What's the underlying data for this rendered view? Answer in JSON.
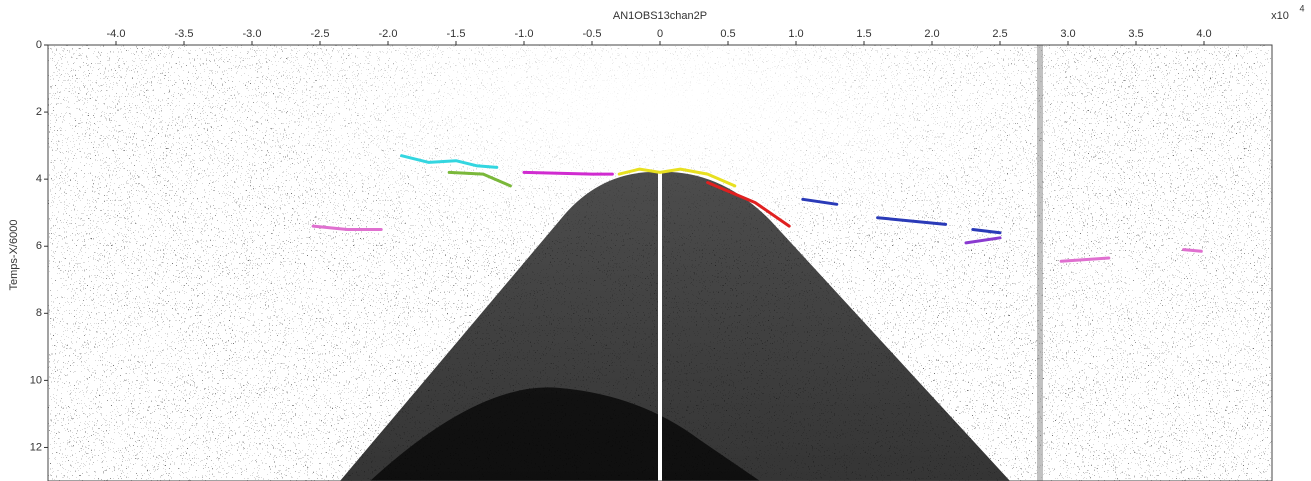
{
  "chart_data": {
    "type": "seismic",
    "title": "AN1OBS13chan2P",
    "y_label": "Temps-X/6000",
    "x_multiplier": "x10",
    "x_exponent": "4",
    "xlim": [
      -4.5,
      4.5
    ],
    "ylim": [
      0,
      13
    ],
    "y_inverted": true,
    "xticks": [
      {
        "value": -4,
        "label": "-4.0"
      },
      {
        "value": -3.5,
        "label": "-3.5"
      },
      {
        "value": -3,
        "label": "-3.0"
      },
      {
        "value": -2.5,
        "label": "-2.5"
      },
      {
        "value": -2,
        "label": "-2.0"
      },
      {
        "value": -1.5,
        "label": "-1.5"
      },
      {
        "value": -1,
        "label": "-1.0"
      },
      {
        "value": -0.5,
        "label": "-0.5"
      },
      0,
      {
        "value": 0.5,
        "label": "0.5"
      },
      {
        "value": 1,
        "label": "1.0"
      },
      {
        "value": 1.5,
        "label": "1.5"
      },
      {
        "value": 2,
        "label": "2.0"
      },
      {
        "value": 2.5,
        "label": "2.5"
      },
      {
        "value": 3,
        "label": "3.0"
      },
      {
        "value": 3.5,
        "label": "3.5"
      },
      {
        "value": 4,
        "label": "4.0"
      }
    ],
    "yticks": [
      0,
      2,
      4,
      6,
      8,
      10,
      12
    ],
    "series": [
      {
        "color": "#33d6e0",
        "x": [
          -1.9,
          -1.7,
          -1.5,
          -1.35,
          -1.2
        ],
        "values": [
          3.3,
          3.5,
          3.45,
          3.6,
          3.65
        ]
      },
      {
        "color": "#7ab83a",
        "x": [
          -1.55,
          -1.3,
          -1.1
        ],
        "values": [
          3.8,
          3.85,
          4.2
        ]
      },
      {
        "color": "#d02bd0",
        "x": [
          -1.0,
          -0.5,
          -0.35
        ],
        "values": [
          3.8,
          3.85,
          3.85
        ]
      },
      {
        "color": "#e8e020",
        "x": [
          -0.3,
          -0.15,
          0,
          0.15,
          0.35,
          0.55
        ],
        "values": [
          3.85,
          3.7,
          3.8,
          3.7,
          3.85,
          4.2
        ]
      },
      {
        "color": "#e02020",
        "x": [
          0.35,
          0.7,
          0.95
        ],
        "values": [
          4.1,
          4.7,
          5.4
        ]
      },
      {
        "color": "#2a3ab8",
        "x": [
          1.05,
          1.3,
          null,
          1.6,
          2.1,
          null,
          2.3,
          2.5
        ],
        "values": [
          4.6,
          4.75,
          null,
          5.15,
          5.35,
          null,
          5.5,
          5.6
        ]
      },
      {
        "color": "#8a3ad0",
        "x": [
          2.25,
          2.5
        ],
        "values": [
          5.9,
          5.75
        ]
      },
      {
        "color": "#e070d0",
        "x": [
          -2.55,
          -2.3,
          -2.05,
          null,
          2.95,
          3.3,
          null,
          3.85,
          3.98
        ],
        "values": [
          5.4,
          5.5,
          5.5,
          null,
          6.45,
          6.35,
          null,
          6.1,
          6.15
        ]
      }
    ]
  }
}
